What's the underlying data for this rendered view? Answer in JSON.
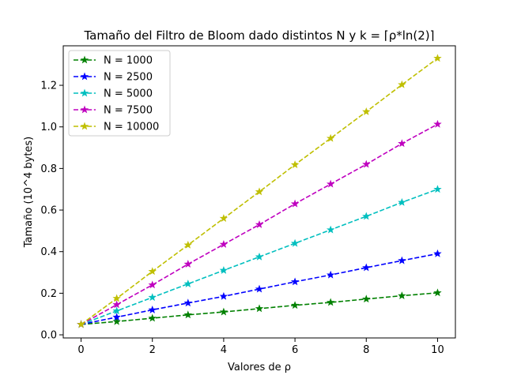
{
  "chart_data": {
    "type": "line",
    "title": "Tamaño del Filtro de Bloom dado distintos N y k = ⌈ρ*ln(2)⌉",
    "xlabel": "Valores de ρ",
    "ylabel": "Tamaño (10^4 bytes)",
    "xlim": [
      -0.5,
      10.5
    ],
    "ylim": [
      -0.015,
      1.39
    ],
    "xticks": [
      0,
      2,
      4,
      6,
      8,
      10
    ],
    "yticks": [
      0.0,
      0.2,
      0.4,
      0.6,
      0.8,
      1.0,
      1.2
    ],
    "ytick_labels": [
      "0.0",
      "0.2",
      "0.4",
      "0.6",
      "0.8",
      "1.0",
      "1.2"
    ],
    "grid": false,
    "legend_position": "top-left",
    "line_style": "dashed",
    "marker": "star",
    "x": [
      0,
      1,
      2,
      3,
      4,
      5,
      6,
      7,
      8,
      9,
      10
    ],
    "series": [
      {
        "name": "N = 1000",
        "color": "#008000",
        "values": [
          0.05,
          0.064,
          0.08,
          0.096,
          0.11,
          0.126,
          0.142,
          0.156,
          0.172,
          0.188,
          0.202
        ]
      },
      {
        "name": "N = 2500",
        "color": "#0000ff",
        "values": [
          0.05,
          0.085,
          0.12,
          0.153,
          0.185,
          0.22,
          0.255,
          0.288,
          0.323,
          0.357,
          0.39
        ]
      },
      {
        "name": "N = 5000",
        "color": "#00bfbf",
        "values": [
          0.05,
          0.115,
          0.18,
          0.245,
          0.31,
          0.375,
          0.44,
          0.505,
          0.57,
          0.637,
          0.7
        ]
      },
      {
        "name": "N = 7500",
        "color": "#bf00bf",
        "values": [
          0.05,
          0.145,
          0.24,
          0.34,
          0.435,
          0.53,
          0.63,
          0.725,
          0.82,
          0.92,
          1.013
        ]
      },
      {
        "name": "N = 10000",
        "color": "#bfbf00",
        "values": [
          0.05,
          0.175,
          0.305,
          0.432,
          0.56,
          0.688,
          0.818,
          0.945,
          1.073,
          1.203,
          1.33
        ]
      }
    ]
  }
}
